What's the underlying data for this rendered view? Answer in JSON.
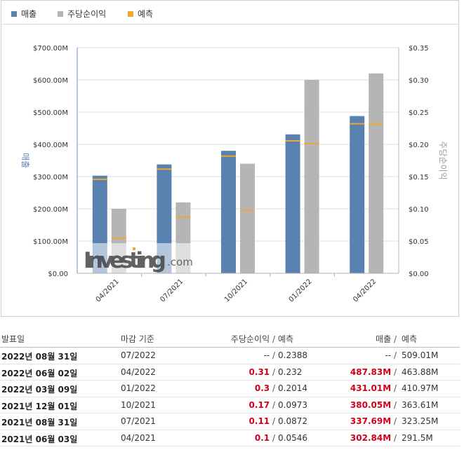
{
  "colors": {
    "revenue": "#5a82b1",
    "eps": "#b5b5b5",
    "forecast": "#f0a830",
    "actual_highlight": "#d0021b"
  },
  "legend": [
    {
      "label": "매출",
      "color": "#5a82b1"
    },
    {
      "label": "주당순이익",
      "color": "#b5b5b5"
    },
    {
      "label": "예측",
      "color": "#f0a830"
    }
  ],
  "watermark": {
    "text_main": "Investing",
    "text_suffix": ".com"
  },
  "chart_data": {
    "type": "bar",
    "categories": [
      "04/2021",
      "07/2021",
      "10/2021",
      "01/2022",
      "04/2022"
    ],
    "y_left": {
      "label": "매출",
      "range": [
        0,
        700
      ],
      "ticks": [
        "$0.00",
        "$100.00M",
        "$200.00M",
        "$300.00M",
        "$400.00M",
        "$500.00M",
        "$600.00M",
        "$700.00M"
      ],
      "values": [
        0,
        100,
        200,
        300,
        400,
        500,
        600,
        700
      ]
    },
    "y_right": {
      "label": "주당순이익",
      "range": [
        0,
        0.35
      ],
      "ticks": [
        "$0.00",
        "$0.05",
        "$0.10",
        "$0.15",
        "$0.20",
        "$0.25",
        "$0.30",
        "$0.35"
      ],
      "values": [
        0,
        0.05,
        0.1,
        0.15,
        0.2,
        0.25,
        0.3,
        0.35
      ]
    },
    "grid": true,
    "legend_position": "top-left",
    "series": [
      {
        "name": "매출",
        "axis": "left",
        "values": [
          302.84,
          337.69,
          380.05,
          431.01,
          487.83
        ],
        "forecast": [
          291.5,
          323.25,
          363.61,
          410.97,
          463.88
        ]
      },
      {
        "name": "주당순이익",
        "axis": "right",
        "values": [
          0.1,
          0.11,
          0.17,
          0.3,
          0.31
        ],
        "forecast": [
          0.0546,
          0.0872,
          0.0973,
          0.2014,
          0.232
        ]
      }
    ]
  },
  "table": {
    "headers": {
      "date": "발표일",
      "period": "마감 기준",
      "eps": "주당순이익",
      "sep": "/",
      "eps_fc": "예측",
      "rev": "매출",
      "rev_fc": "예측"
    },
    "rows": [
      {
        "date": "2022년 08월 31일",
        "period": "07/2022",
        "eps": "--",
        "eps_fc": "0.2388",
        "rev": "--",
        "rev_fc": "509.01M",
        "eps_red": false,
        "rev_red": false
      },
      {
        "date": "2022년 06월 02일",
        "period": "04/2022",
        "eps": "0.31",
        "eps_fc": "0.232",
        "rev": "487.83M",
        "rev_fc": "463.88M",
        "eps_red": true,
        "rev_red": true
      },
      {
        "date": "2022년 03월 09일",
        "period": "01/2022",
        "eps": "0.3",
        "eps_fc": "0.2014",
        "rev": "431.01M",
        "rev_fc": "410.97M",
        "eps_red": true,
        "rev_red": true
      },
      {
        "date": "2021년 12월 01일",
        "period": "10/2021",
        "eps": "0.17",
        "eps_fc": "0.0973",
        "rev": "380.05M",
        "rev_fc": "363.61M",
        "eps_red": true,
        "rev_red": true
      },
      {
        "date": "2021년 08월 31일",
        "period": "07/2021",
        "eps": "0.11",
        "eps_fc": "0.0872",
        "rev": "337.69M",
        "rev_fc": "323.25M",
        "eps_red": true,
        "rev_red": true
      },
      {
        "date": "2021년 06월 03일",
        "period": "04/2021",
        "eps": "0.1",
        "eps_fc": "0.0546",
        "rev": "302.84M",
        "rev_fc": "291.5M",
        "eps_red": true,
        "rev_red": true
      }
    ]
  }
}
